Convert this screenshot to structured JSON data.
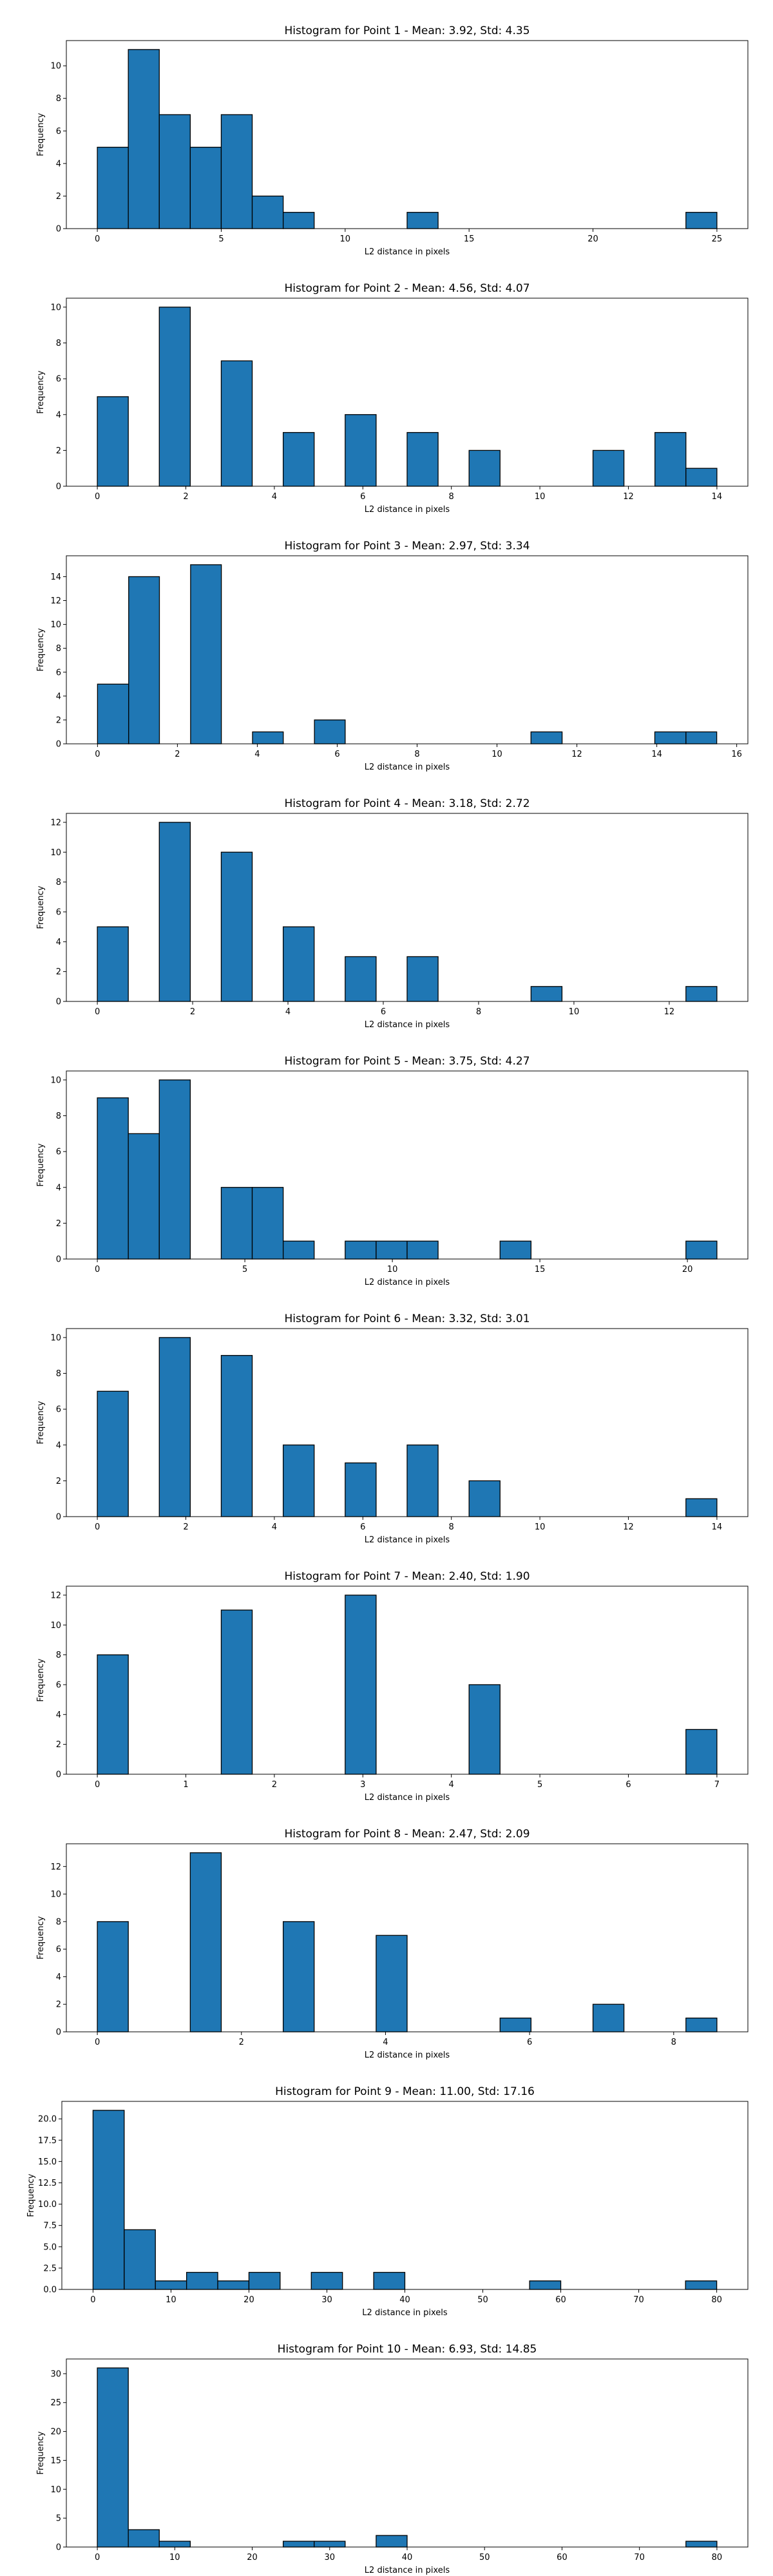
{
  "colors": {
    "bar_fill": "#1f77b4",
    "bar_edge": "#000000",
    "axes": "#000000",
    "background": "#ffffff"
  },
  "chart_data": [
    {
      "type": "bar",
      "title": "Histogram for Point 1 - Mean: 3.92, Std: 4.35",
      "xlabel": "L2 distance in pixels",
      "ylabel": "Frequency",
      "xlim": [
        -1.25,
        26.25
      ],
      "ylim": [
        0,
        11.55
      ],
      "xticks": [
        0,
        5,
        10,
        15,
        20,
        25
      ],
      "yticks": [
        0,
        2,
        4,
        6,
        8,
        10
      ],
      "bins": [
        [
          0,
          1.25,
          5
        ],
        [
          1.25,
          2.5,
          11
        ],
        [
          2.5,
          3.75,
          7
        ],
        [
          3.75,
          5.0,
          5
        ],
        [
          5.0,
          6.25,
          7
        ],
        [
          6.25,
          7.5,
          2
        ],
        [
          7.5,
          8.75,
          1
        ],
        [
          12.5,
          13.75,
          1
        ],
        [
          23.75,
          25.0,
          1
        ]
      ],
      "grid": false
    },
    {
      "type": "bar",
      "title": "Histogram for Point 2 - Mean: 4.56, Std: 4.07",
      "xlabel": "L2 distance in pixels",
      "ylabel": "Frequency",
      "xlim": [
        -0.7,
        14.7
      ],
      "ylim": [
        0,
        10.5
      ],
      "xticks": [
        0,
        2,
        4,
        6,
        8,
        10,
        12,
        14
      ],
      "yticks": [
        0,
        2,
        4,
        6,
        8,
        10
      ],
      "bins": [
        [
          0,
          0.7,
          5
        ],
        [
          1.4,
          2.1,
          10
        ],
        [
          2.8,
          3.5,
          7
        ],
        [
          4.2,
          4.9,
          3
        ],
        [
          5.6,
          6.3,
          4
        ],
        [
          7.0,
          7.7,
          3
        ],
        [
          8.4,
          9.1,
          2
        ],
        [
          11.2,
          11.9,
          2
        ],
        [
          12.6,
          13.3,
          3
        ],
        [
          13.3,
          14.0,
          1
        ]
      ],
      "grid": false
    },
    {
      "type": "bar",
      "title": "Histogram for Point 3 - Mean: 2.97, Std: 3.34",
      "xlabel": "L2 distance in pixels",
      "ylabel": "Frequency",
      "xlim": [
        -0.78,
        16.28
      ],
      "ylim": [
        0,
        15.75
      ],
      "xticks": [
        0,
        2,
        4,
        6,
        8,
        10,
        12,
        14,
        16
      ],
      "yticks": [
        0,
        2,
        4,
        6,
        8,
        10,
        12,
        14
      ],
      "bins": [
        [
          0,
          0.78,
          5
        ],
        [
          0.78,
          1.55,
          14
        ],
        [
          2.33,
          3.1,
          15
        ],
        [
          3.88,
          4.65,
          1
        ],
        [
          5.43,
          6.2,
          2
        ],
        [
          10.85,
          11.63,
          1
        ],
        [
          13.95,
          14.73,
          1
        ],
        [
          14.73,
          15.5,
          1
        ]
      ],
      "grid": false
    },
    {
      "type": "bar",
      "title": "Histogram for Point 4 - Mean: 3.18, Std: 2.72",
      "xlabel": "L2 distance in pixels",
      "ylabel": "Frequency",
      "xlim": [
        -0.65,
        13.65
      ],
      "ylim": [
        0,
        12.6
      ],
      "xticks": [
        0,
        2,
        4,
        6,
        8,
        10,
        12
      ],
      "yticks": [
        0,
        2,
        4,
        6,
        8,
        10,
        12
      ],
      "bins": [
        [
          0,
          0.65,
          5
        ],
        [
          1.3,
          1.95,
          12
        ],
        [
          2.6,
          3.25,
          10
        ],
        [
          3.9,
          4.55,
          5
        ],
        [
          5.2,
          5.85,
          3
        ],
        [
          6.5,
          7.15,
          3
        ],
        [
          9.1,
          9.75,
          1
        ],
        [
          12.35,
          13.0,
          1
        ]
      ],
      "grid": false
    },
    {
      "type": "bar",
      "title": "Histogram for Point 5 - Mean: 3.75, Std: 4.27",
      "xlabel": "L2 distance in pixels",
      "ylabel": "Frequency",
      "xlim": [
        -1.05,
        22.05
      ],
      "ylim": [
        0,
        10.5
      ],
      "xticks": [
        0,
        5,
        10,
        15,
        20
      ],
      "yticks": [
        0,
        2,
        4,
        6,
        8,
        10
      ],
      "bins": [
        [
          0,
          1.05,
          9
        ],
        [
          1.05,
          2.1,
          7
        ],
        [
          2.1,
          3.15,
          10
        ],
        [
          4.2,
          5.25,
          4
        ],
        [
          5.25,
          6.3,
          4
        ],
        [
          6.3,
          7.35,
          1
        ],
        [
          8.4,
          9.45,
          1
        ],
        [
          9.45,
          10.5,
          1
        ],
        [
          10.5,
          11.55,
          1
        ],
        [
          13.65,
          14.7,
          1
        ],
        [
          19.95,
          21.0,
          1
        ]
      ],
      "grid": false
    },
    {
      "type": "bar",
      "title": "Histogram for Point 6 - Mean: 3.32, Std: 3.01",
      "xlabel": "L2 distance in pixels",
      "ylabel": "Frequency",
      "xlim": [
        -0.7,
        14.7
      ],
      "ylim": [
        0,
        10.5
      ],
      "xticks": [
        0,
        2,
        4,
        6,
        8,
        10,
        12,
        14
      ],
      "yticks": [
        0,
        2,
        4,
        6,
        8,
        10
      ],
      "bins": [
        [
          0,
          0.7,
          7
        ],
        [
          1.4,
          2.1,
          10
        ],
        [
          2.8,
          3.5,
          9
        ],
        [
          4.2,
          4.9,
          4
        ],
        [
          5.6,
          6.3,
          3
        ],
        [
          7.0,
          7.7,
          4
        ],
        [
          8.4,
          9.1,
          2
        ],
        [
          13.3,
          14.0,
          1
        ]
      ],
      "grid": false
    },
    {
      "type": "bar",
      "title": "Histogram for Point 7 - Mean: 2.40, Std: 1.90",
      "xlabel": "L2 distance in pixels",
      "ylabel": "Frequency",
      "xlim": [
        -0.35,
        7.35
      ],
      "ylim": [
        0,
        12.6
      ],
      "xticks": [
        0,
        1,
        2,
        3,
        4,
        5,
        6,
        7
      ],
      "yticks": [
        0,
        2,
        4,
        6,
        8,
        10,
        12
      ],
      "bins": [
        [
          0,
          0.35,
          8
        ],
        [
          1.4,
          1.75,
          11
        ],
        [
          2.8,
          3.15,
          12
        ],
        [
          4.2,
          4.55,
          6
        ],
        [
          6.65,
          7.0,
          3
        ]
      ],
      "grid": false
    },
    {
      "type": "bar",
      "title": "Histogram for Point 8 - Mean: 2.47, Std: 2.09",
      "xlabel": "L2 distance in pixels",
      "ylabel": "Frequency",
      "xlim": [
        -0.43,
        9.03
      ],
      "ylim": [
        0,
        13.65
      ],
      "xticks": [
        0,
        2,
        4,
        6,
        8
      ],
      "yticks": [
        0,
        2,
        4,
        6,
        8,
        10,
        12
      ],
      "bins": [
        [
          0,
          0.43,
          8
        ],
        [
          1.29,
          1.72,
          13
        ],
        [
          2.58,
          3.01,
          8
        ],
        [
          3.87,
          4.3,
          7
        ],
        [
          5.59,
          6.02,
          1
        ],
        [
          6.88,
          7.31,
          2
        ],
        [
          8.17,
          8.6,
          1
        ]
      ],
      "grid": false
    },
    {
      "type": "bar",
      "title": "Histogram for Point 9 - Mean: 11.00, Std: 17.16",
      "xlabel": "L2 distance in pixels",
      "ylabel": "Frequency",
      "xlim": [
        -4.0,
        84.0
      ],
      "ylim": [
        0,
        22.05
      ],
      "xticks": [
        0,
        10,
        20,
        30,
        40,
        50,
        60,
        70,
        80
      ],
      "yticks": [
        0.0,
        2.5,
        5.0,
        7.5,
        10.0,
        12.5,
        15.0,
        17.5,
        20.0
      ],
      "ytick_format": 1,
      "bins": [
        [
          0,
          4,
          21
        ],
        [
          4,
          8,
          7
        ],
        [
          8,
          12,
          1
        ],
        [
          12,
          16,
          2
        ],
        [
          16,
          20,
          1
        ],
        [
          20,
          24,
          2
        ],
        [
          28,
          32,
          2
        ],
        [
          36,
          40,
          2
        ],
        [
          56,
          60,
          1
        ],
        [
          76,
          80,
          1
        ]
      ],
      "grid": false
    },
    {
      "type": "bar",
      "title": "Histogram for Point 10 - Mean: 6.93, Std: 14.85",
      "xlabel": "L2 distance in pixels",
      "ylabel": "Frequency",
      "xlim": [
        -4.0,
        84.0
      ],
      "ylim": [
        0,
        32.55
      ],
      "xticks": [
        0,
        10,
        20,
        30,
        40,
        50,
        60,
        70,
        80
      ],
      "yticks": [
        0,
        5,
        10,
        15,
        20,
        25,
        30
      ],
      "bins": [
        [
          0,
          4,
          31
        ],
        [
          4,
          8,
          3
        ],
        [
          8,
          12,
          1
        ],
        [
          24,
          28,
          1
        ],
        [
          28,
          32,
          1
        ],
        [
          36,
          40,
          2
        ],
        [
          76,
          80,
          1
        ]
      ],
      "grid": false
    }
  ]
}
